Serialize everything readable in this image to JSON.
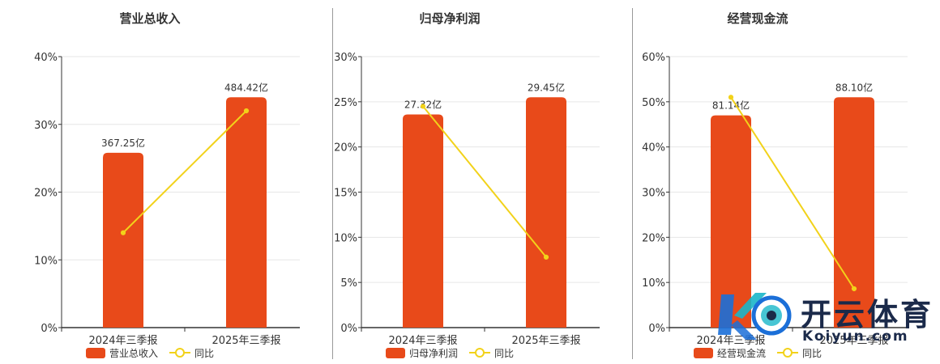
{
  "colors": {
    "bar": "#e84a1a",
    "line": "#f2d21a",
    "grid": "#e6e6e6",
    "axis": "#333333",
    "text": "#333333"
  },
  "legend": {
    "line_label": "同比"
  },
  "watermark": {
    "cn": "开云体育",
    "en": "Koiyun.com"
  },
  "chart_data": [
    {
      "type": "bar",
      "title": "营业总收入",
      "categories": [
        "2024年三季报",
        "2025年三季报"
      ],
      "series": [
        {
          "name": "营业总收入",
          "type": "bar",
          "values": [
            25.8,
            34.0
          ],
          "labels": [
            "367.25亿",
            "484.42亿"
          ]
        },
        {
          "name": "同比",
          "type": "line",
          "values": [
            14.0,
            32.0
          ]
        }
      ],
      "ylim": [
        0,
        40
      ],
      "yticks": [
        "0%",
        "10%",
        "20%",
        "30%",
        "40%"
      ],
      "grid": true,
      "legend_position": "bottom"
    },
    {
      "type": "bar",
      "title": "归母净利润",
      "categories": [
        "2024年三季报",
        "2025年三季报"
      ],
      "series": [
        {
          "name": "归母净利润",
          "type": "bar",
          "values": [
            23.6,
            25.5
          ],
          "labels": [
            "27.32亿",
            "29.45亿"
          ]
        },
        {
          "name": "同比",
          "type": "line",
          "values": [
            24.5,
            7.8
          ]
        }
      ],
      "ylim": [
        0,
        30
      ],
      "yticks": [
        "0%",
        "5%",
        "10%",
        "15%",
        "20%",
        "25%",
        "30%"
      ],
      "grid": true,
      "legend_position": "bottom"
    },
    {
      "type": "bar",
      "title": "经营现金流",
      "categories": [
        "2024年三季报",
        "2025年三季报"
      ],
      "series": [
        {
          "name": "经营现金流",
          "type": "bar",
          "values": [
            47.0,
            51.0
          ],
          "labels": [
            "81.14亿",
            "88.10亿"
          ]
        },
        {
          "name": "同比",
          "type": "line",
          "values": [
            51.0,
            8.6
          ]
        }
      ],
      "ylim": [
        0,
        60
      ],
      "yticks": [
        "0%",
        "10%",
        "20%",
        "30%",
        "40%",
        "50%",
        "60%"
      ],
      "grid": true,
      "legend_position": "bottom"
    }
  ]
}
